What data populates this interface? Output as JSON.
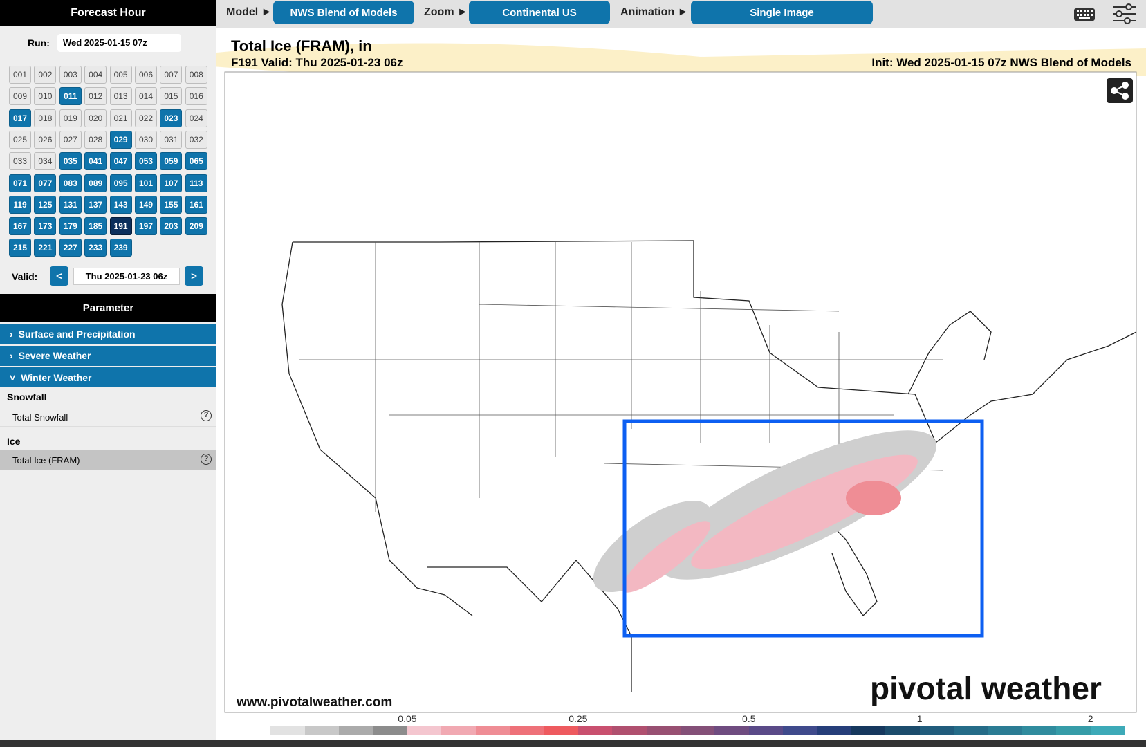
{
  "topbar": {
    "sidebar_title": "Forecast Hour",
    "model_label": "Model ►",
    "model_value": "NWS Blend of Models",
    "zoom_label": "Zoom ►",
    "zoom_value": "Continental US",
    "animation_label": "Animation ►",
    "animation_value": "Single Image"
  },
  "sidebar": {
    "run_label": "Run:",
    "run_value": "Wed 2025-01-15 07z",
    "hours": [
      {
        "label": "001",
        "state": "off"
      },
      {
        "label": "002",
        "state": "off"
      },
      {
        "label": "003",
        "state": "off"
      },
      {
        "label": "004",
        "state": "off"
      },
      {
        "label": "005",
        "state": "off"
      },
      {
        "label": "006",
        "state": "off"
      },
      {
        "label": "007",
        "state": "off"
      },
      {
        "label": "008",
        "state": "off"
      },
      {
        "label": "009",
        "state": "off"
      },
      {
        "label": "010",
        "state": "off"
      },
      {
        "label": "011",
        "state": "on"
      },
      {
        "label": "012",
        "state": "off"
      },
      {
        "label": "013",
        "state": "off"
      },
      {
        "label": "014",
        "state": "off"
      },
      {
        "label": "015",
        "state": "off"
      },
      {
        "label": "016",
        "state": "off"
      },
      {
        "label": "017",
        "state": "on"
      },
      {
        "label": "018",
        "state": "off"
      },
      {
        "label": "019",
        "state": "off"
      },
      {
        "label": "020",
        "state": "off"
      },
      {
        "label": "021",
        "state": "off"
      },
      {
        "label": "022",
        "state": "off"
      },
      {
        "label": "023",
        "state": "on"
      },
      {
        "label": "024",
        "state": "off"
      },
      {
        "label": "025",
        "state": "off"
      },
      {
        "label": "026",
        "state": "off"
      },
      {
        "label": "027",
        "state": "off"
      },
      {
        "label": "028",
        "state": "off"
      },
      {
        "label": "029",
        "state": "on"
      },
      {
        "label": "030",
        "state": "off"
      },
      {
        "label": "031",
        "state": "off"
      },
      {
        "label": "032",
        "state": "off"
      },
      {
        "label": "033",
        "state": "off"
      },
      {
        "label": "034",
        "state": "off"
      },
      {
        "label": "035",
        "state": "on"
      },
      {
        "label": "041",
        "state": "on"
      },
      {
        "label": "047",
        "state": "on"
      },
      {
        "label": "053",
        "state": "on"
      },
      {
        "label": "059",
        "state": "on"
      },
      {
        "label": "065",
        "state": "on"
      },
      {
        "label": "071",
        "state": "on"
      },
      {
        "label": "077",
        "state": "on"
      },
      {
        "label": "083",
        "state": "on"
      },
      {
        "label": "089",
        "state": "on"
      },
      {
        "label": "095",
        "state": "on"
      },
      {
        "label": "101",
        "state": "on"
      },
      {
        "label": "107",
        "state": "on"
      },
      {
        "label": "113",
        "state": "on"
      },
      {
        "label": "119",
        "state": "on"
      },
      {
        "label": "125",
        "state": "on"
      },
      {
        "label": "131",
        "state": "on"
      },
      {
        "label": "137",
        "state": "on"
      },
      {
        "label": "143",
        "state": "on"
      },
      {
        "label": "149",
        "state": "on"
      },
      {
        "label": "155",
        "state": "on"
      },
      {
        "label": "161",
        "state": "on"
      },
      {
        "label": "167",
        "state": "on"
      },
      {
        "label": "173",
        "state": "on"
      },
      {
        "label": "179",
        "state": "on"
      },
      {
        "label": "185",
        "state": "on"
      },
      {
        "label": "191",
        "state": "current"
      },
      {
        "label": "197",
        "state": "on"
      },
      {
        "label": "203",
        "state": "on"
      },
      {
        "label": "209",
        "state": "on"
      },
      {
        "label": "215",
        "state": "on"
      },
      {
        "label": "221",
        "state": "on"
      },
      {
        "label": "227",
        "state": "on"
      },
      {
        "label": "233",
        "state": "on"
      },
      {
        "label": "239",
        "state": "on"
      }
    ],
    "valid_label": "Valid:",
    "prev": "<",
    "valid_value": "Thu 2025-01-23 06z",
    "next": ">",
    "parameter_title": "Parameter",
    "sections": [
      "Surface and Precipitation",
      "Severe Weather",
      "Winter Weather"
    ],
    "snowfall_group": "Snowfall",
    "snowfall_item": "Total Snowfall",
    "ice_group": "Ice",
    "ice_item": "Total Ice (FRAM)",
    "help": "?"
  },
  "map": {
    "title": "Total Ice (FRAM), in",
    "valid": "F191 Valid: Thu 2025-01-23 06z",
    "init": "Init: Wed 2025-01-15 07z NWS Blend of Models",
    "url": "www.pivotalweather.com",
    "brand": "pivotal weather",
    "colorbar": {
      "colors": [
        "#ffffff",
        "#e2e2e2",
        "#c8c8c8",
        "#ababab",
        "#8c8c8c",
        "#f4c6cf",
        "#f1a9b2",
        "#ef8d95",
        "#ee7179",
        "#ee5a5f",
        "#c9506f",
        "#b0506f",
        "#985072",
        "#845078",
        "#6f4c80",
        "#5a4a88",
        "#3f4a8c",
        "#263e7a",
        "#16385e",
        "#1c4c6c",
        "#215c7c",
        "#256c88",
        "#2b7c94",
        "#308c9e",
        "#369ca8",
        "#3daab8"
      ],
      "labels": [
        "0.05",
        "0.25",
        "0.5",
        "1",
        "2"
      ]
    }
  }
}
